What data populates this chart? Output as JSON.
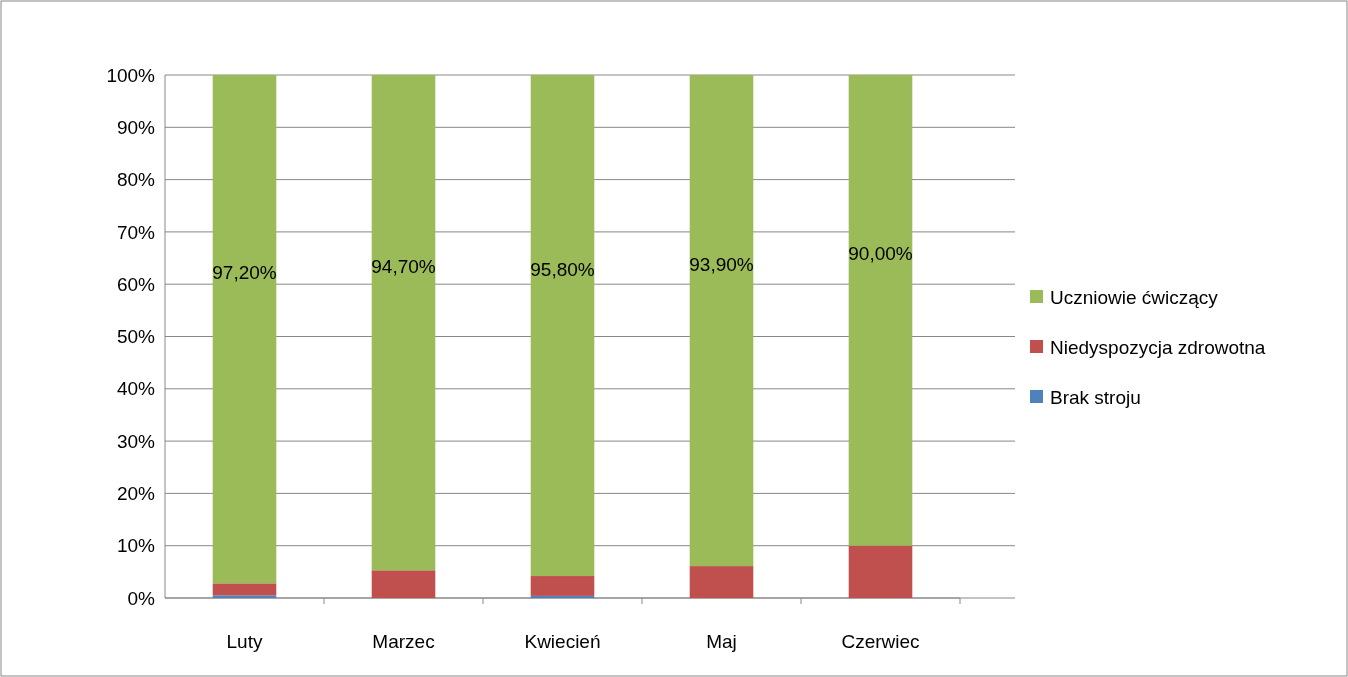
{
  "chart_data": {
    "type": "bar",
    "stacked": true,
    "categories": [
      "Luty",
      "Marzec",
      "Kwiecień",
      "Maj",
      "Czerwiec"
    ],
    "series": [
      {
        "name": "Brak stroju",
        "color": "#4f81bd",
        "values": [
          0.5,
          0,
          0.4,
          0,
          0
        ]
      },
      {
        "name": "Niedyspozycja zdrowotna",
        "color": "#c0504d",
        "values": [
          2.3,
          5.3,
          3.8,
          6.1,
          10
        ]
      },
      {
        "name": "Uczniowie ćwiczący",
        "color": "#9bbb59",
        "values": [
          97.2,
          94.7,
          95.8,
          93.9,
          90
        ],
        "value_labels": [
          "97,20%",
          "94,70%",
          "95,80%",
          "93,90%",
          "90,00%"
        ]
      }
    ],
    "ylim": [
      0,
      100
    ],
    "yticks": [
      {
        "value": 0,
        "label": "0%"
      },
      {
        "value": 10,
        "label": "10%"
      },
      {
        "value": 20,
        "label": "20%"
      },
      {
        "value": 30,
        "label": "30%"
      },
      {
        "value": 40,
        "label": "40%"
      },
      {
        "value": 50,
        "label": "50%"
      },
      {
        "value": 60,
        "label": "60%"
      },
      {
        "value": 70,
        "label": "70%"
      },
      {
        "value": 80,
        "label": "80%"
      },
      {
        "value": 90,
        "label": "90%"
      },
      {
        "value": 100,
        "label": "100%"
      }
    ],
    "grid": "y",
    "legend": "right"
  }
}
